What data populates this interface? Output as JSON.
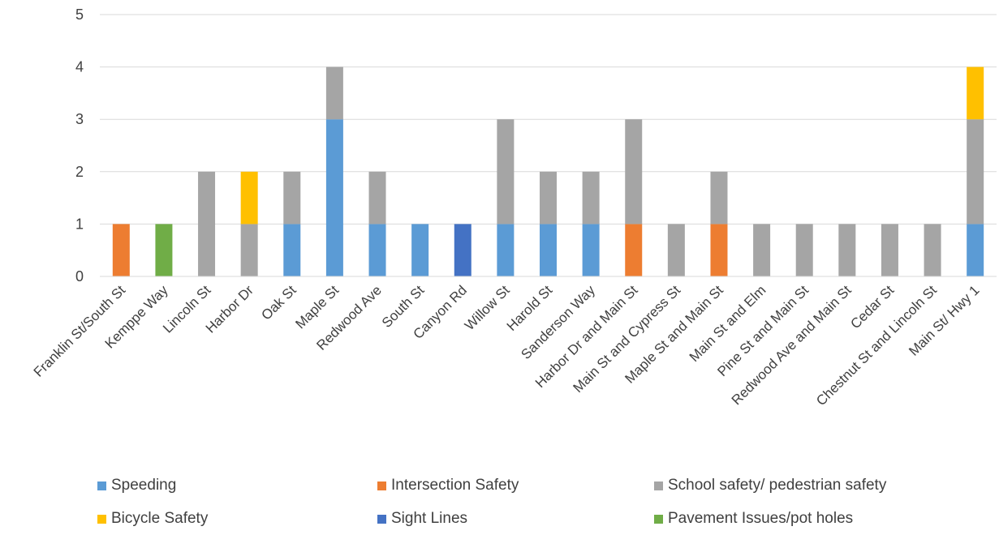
{
  "chart_data": {
    "type": "bar",
    "stacked": true,
    "title": "",
    "xlabel": "",
    "ylabel": "",
    "ylim": [
      0,
      5
    ],
    "yticks": [
      0,
      1,
      2,
      3,
      4,
      5
    ],
    "grid": true,
    "legend_position": "bottom",
    "categories": [
      "Franklin St/South St",
      "Kemppe Way",
      "Lincoln St",
      "Harbor Dr",
      "Oak St",
      "Maple St",
      "Redwood Ave",
      "South St",
      "Canyon Rd",
      "Willow St",
      "Harold St",
      "Sanderson Way",
      "Harbor Dr and Main St",
      "Main St and Cypress St",
      "Maple St and Main St",
      "Main St and Elm",
      "Pine St and Main St",
      "Redwood Ave and Main St",
      "Cedar St",
      "Chestnut St and Lincoln St",
      "Main St/ Hwy 1"
    ],
    "series": [
      {
        "name": "Speeding",
        "color": "#5B9BD5",
        "values": [
          0,
          0,
          0,
          0,
          1,
          3,
          1,
          1,
          0,
          1,
          1,
          1,
          0,
          0,
          0,
          0,
          0,
          0,
          0,
          0,
          1
        ]
      },
      {
        "name": "Intersection Safety",
        "color": "#ED7D31",
        "values": [
          1,
          0,
          0,
          0,
          0,
          0,
          0,
          0,
          0,
          0,
          0,
          0,
          1,
          0,
          1,
          0,
          0,
          0,
          0,
          0,
          0
        ]
      },
      {
        "name": "School safety/ pedestrian safety",
        "color": "#A5A5A5",
        "values": [
          0,
          0,
          2,
          1,
          1,
          1,
          1,
          0,
          0,
          2,
          1,
          1,
          2,
          1,
          1,
          1,
          1,
          1,
          1,
          1,
          2
        ]
      },
      {
        "name": "Bicycle Safety",
        "color": "#FFC000",
        "values": [
          0,
          0,
          0,
          1,
          0,
          0,
          0,
          0,
          0,
          0,
          0,
          0,
          0,
          0,
          0,
          0,
          0,
          0,
          0,
          0,
          1
        ]
      },
      {
        "name": "Sight Lines",
        "color": "#4472C4",
        "values": [
          0,
          0,
          0,
          0,
          0,
          0,
          0,
          0,
          1,
          0,
          0,
          0,
          0,
          0,
          0,
          0,
          0,
          0,
          0,
          0,
          0
        ]
      },
      {
        "name": "Pavement Issues/pot holes",
        "color": "#70AD47",
        "values": [
          0,
          1,
          0,
          0,
          0,
          0,
          0,
          0,
          0,
          0,
          0,
          0,
          0,
          0,
          0,
          0,
          0,
          0,
          0,
          0,
          0
        ]
      }
    ]
  }
}
